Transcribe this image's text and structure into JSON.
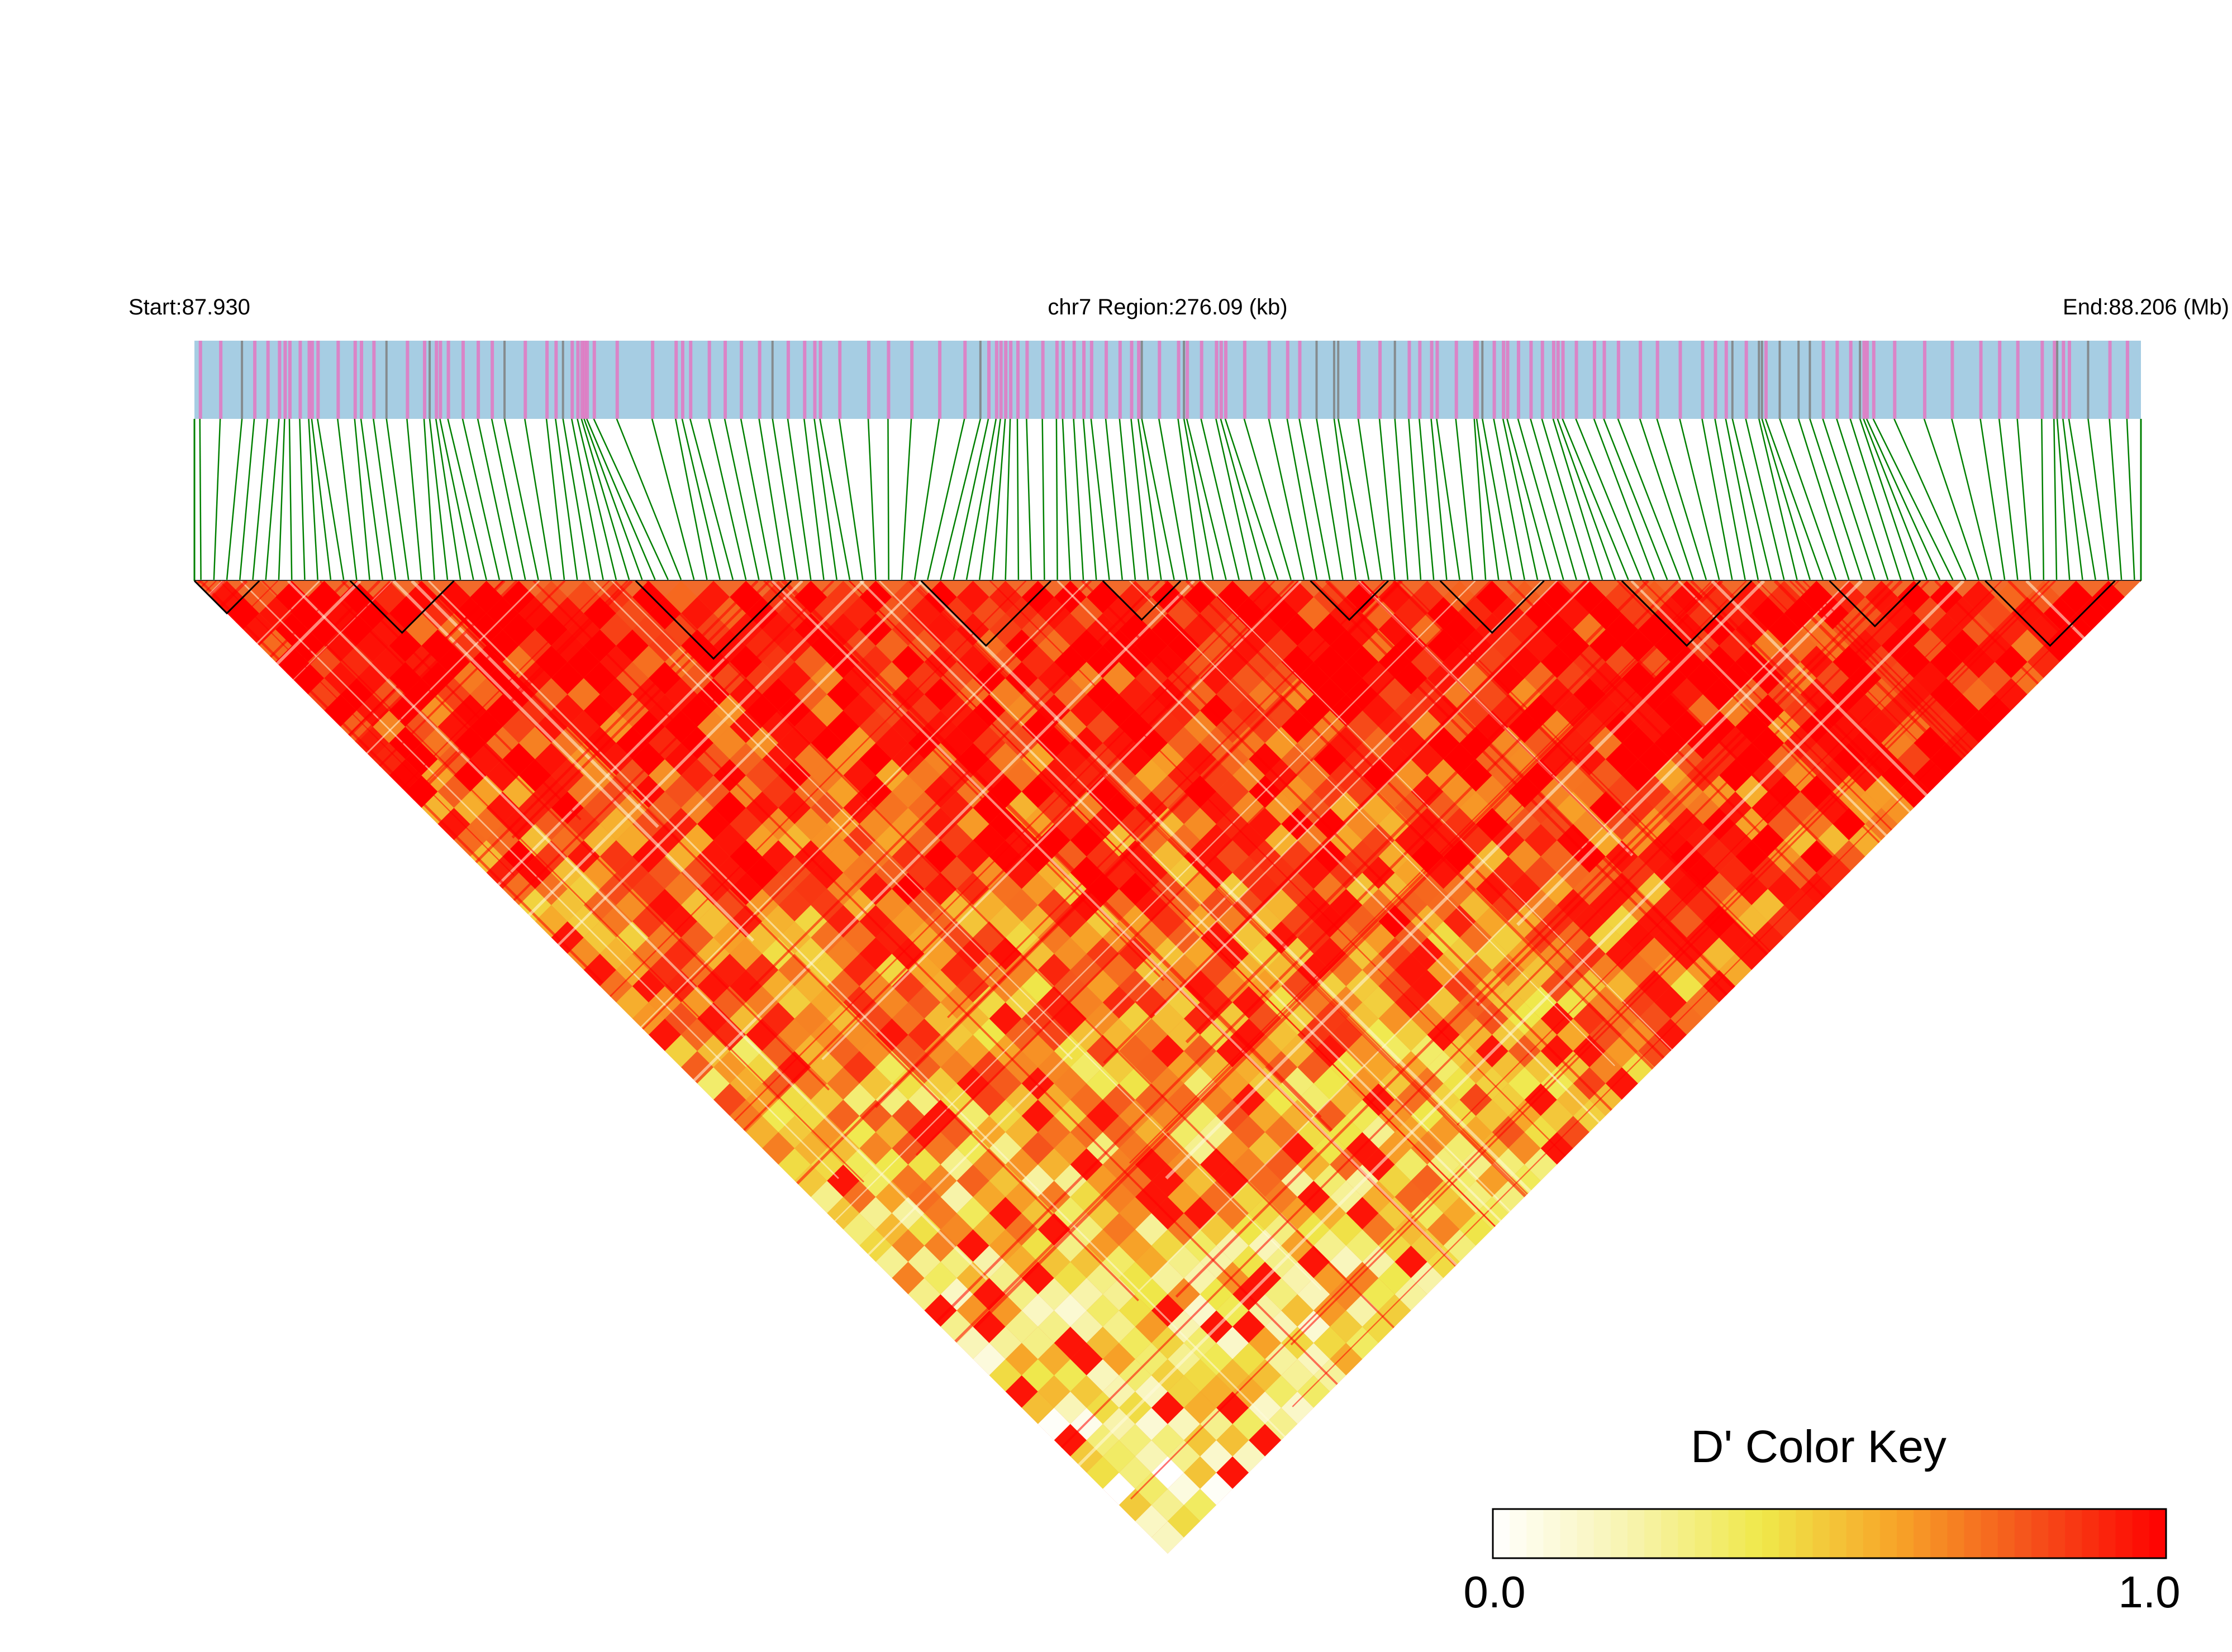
{
  "chart_data": {
    "type": "heatmap",
    "title": "",
    "header": {
      "start_label": "Start:87.930",
      "region_label": "chr7 Region:276.09 (kb)",
      "end_label": "End:88.206 (Mb)"
    },
    "region": {
      "chromosome": "chr7",
      "start_mb": 87.93,
      "end_mb": 88.206,
      "length_kb": 276.09
    },
    "matrix": {
      "statistic": "D'",
      "value_range": [
        0.0,
        1.0
      ],
      "layout": "triangle-below-snp-track",
      "note_from_image": "Pairwise LD heatmap; strongest (red) values along the top edge, mixed yellow/red lower down"
    },
    "snp_track": {
      "fill_color": "#a6cde3",
      "marker_colors": [
        "#e377c2",
        "#7f7f7f"
      ],
      "connector_color": "#008000"
    },
    "color_key": {
      "title": "D' Color Key",
      "min_label": "0.0",
      "max_label": "1.0",
      "min": 0.0,
      "max": 1.0,
      "gradient_stops": [
        "#ffffff",
        "#f8f4b0",
        "#efe84a",
        "#f7a428",
        "#f5511b",
        "#ff0000"
      ]
    }
  }
}
